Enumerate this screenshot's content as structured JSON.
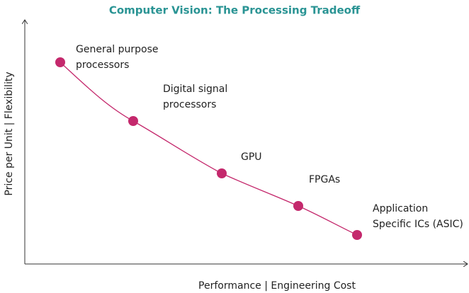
{
  "title": "Computer Vision: The Processing Tradeoff",
  "x_label": "Performance | Engineering Cost",
  "y_label": "Price per Unit | Flexibility",
  "nodes": [
    {
      "label": [
        "General purpose",
        "processors"
      ]
    },
    {
      "label": [
        "Digital signal",
        "processors"
      ]
    },
    {
      "label": [
        "GPU"
      ]
    },
    {
      "label": [
        "FPGAs"
      ]
    },
    {
      "label": [
        "Application",
        "Specific ICs (ASIC)"
      ]
    }
  ]
}
